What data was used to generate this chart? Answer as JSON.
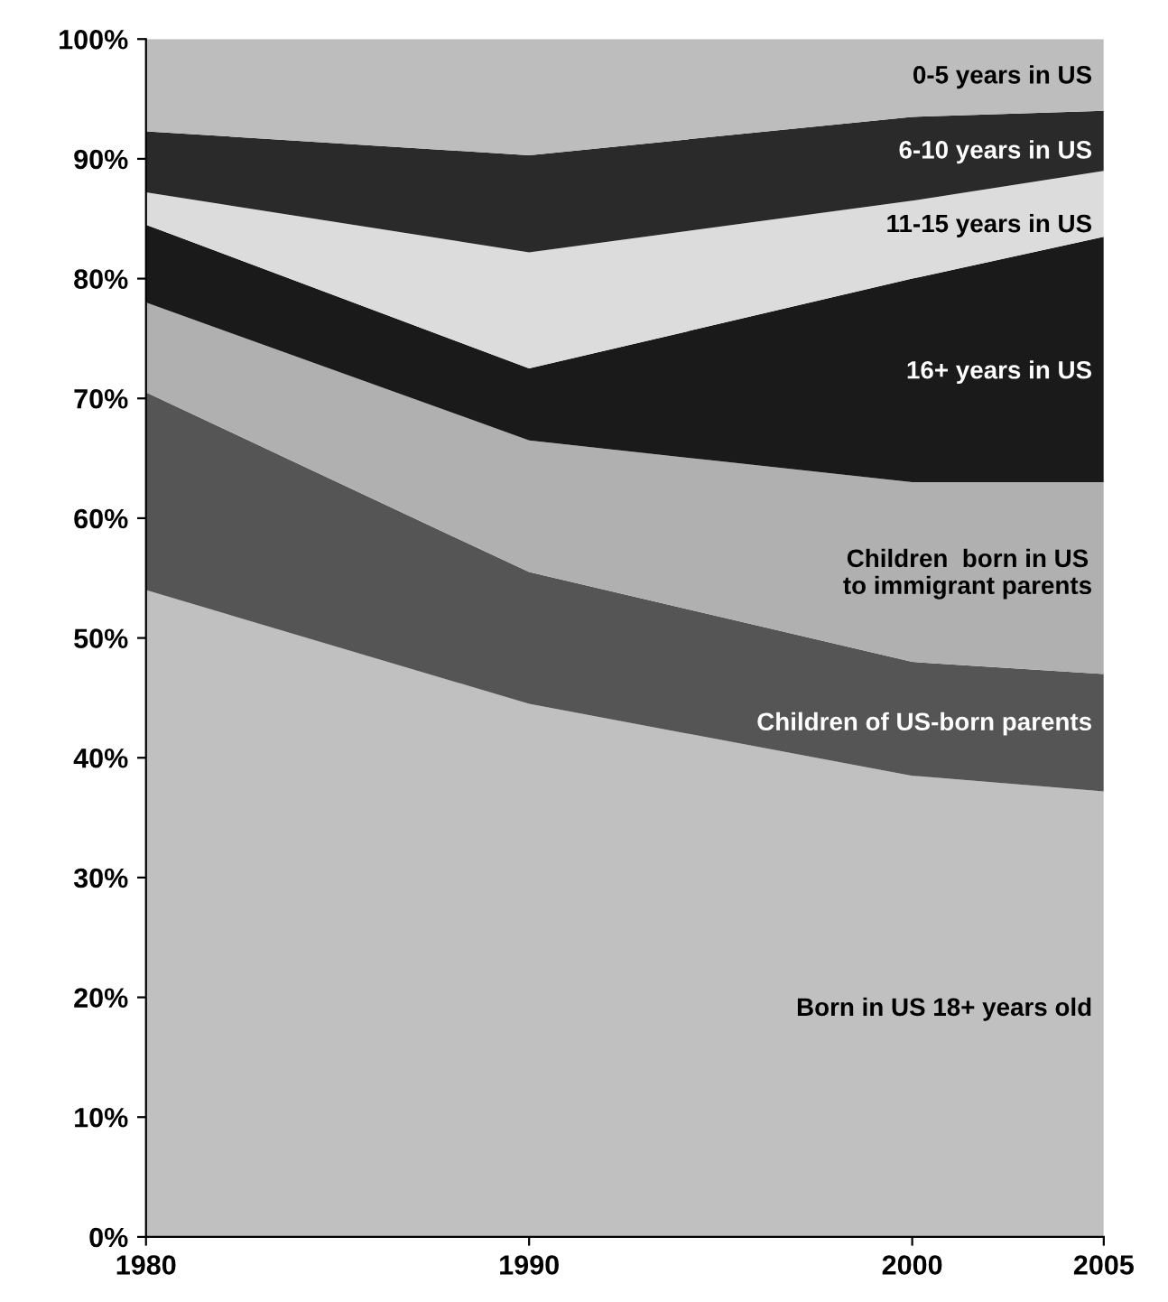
{
  "chart_data": {
    "type": "area",
    "stacked": true,
    "x": [
      1980,
      1990,
      2000,
      2005
    ],
    "xlim": [
      1980,
      2005
    ],
    "xticks": [
      1980,
      1990,
      2000,
      2005
    ],
    "ylim": [
      0,
      100
    ],
    "yticks": [
      {
        "value": 0,
        "label": "0%"
      },
      {
        "value": 10,
        "label": "10%"
      },
      {
        "value": 20,
        "label": "20%"
      },
      {
        "value": 30,
        "label": "30%"
      },
      {
        "value": 40,
        "label": "40%"
      },
      {
        "value": 50,
        "label": "50%"
      },
      {
        "value": 60,
        "label": "60%"
      },
      {
        "value": 70,
        "label": "70%"
      },
      {
        "value": 80,
        "label": "80%"
      },
      {
        "value": 90,
        "label": "90%"
      },
      {
        "value": 100,
        "label": "100%"
      }
    ],
    "grid": false,
    "legend": false,
    "series": [
      {
        "name": "Born in US 18+ years old",
        "color": "#c0c0c0",
        "values": [
          54,
          44.5,
          38.5,
          37.2
        ]
      },
      {
        "name": "Children of US-born parents",
        "color": "#555555",
        "values": [
          16.5,
          11,
          9.5,
          9.8
        ]
      },
      {
        "name": "Children  born in US to immigrant parents",
        "color": "#b0b0b0",
        "values": [
          7.5,
          11,
          15,
          16
        ]
      },
      {
        "name": "16+ years in US",
        "color": "#1a1a1a",
        "values": [
          6.5,
          6,
          17,
          20.5
        ]
      },
      {
        "name": "11-15 years in US",
        "color": "#dcdcdc",
        "values": [
          2.7,
          9.7,
          6.5,
          5.5
        ]
      },
      {
        "name": "6-10 years in US",
        "color": "#2a2a2a",
        "values": [
          5.1,
          8.1,
          7,
          5
        ]
      },
      {
        "name": "0-5 years in US",
        "color": "#bdbdbd",
        "values": [
          7.7,
          9.7,
          6.5,
          6
        ]
      }
    ]
  }
}
